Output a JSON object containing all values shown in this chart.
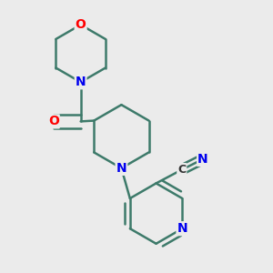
{
  "background_color": "#ebebeb",
  "bond_color": "#3d7a6a",
  "atom_colors": {
    "O": "#ff0000",
    "N": "#0000ee",
    "C": "#333333"
  },
  "bond_width": 1.8,
  "figsize": [
    3.0,
    3.0
  ],
  "dpi": 100
}
